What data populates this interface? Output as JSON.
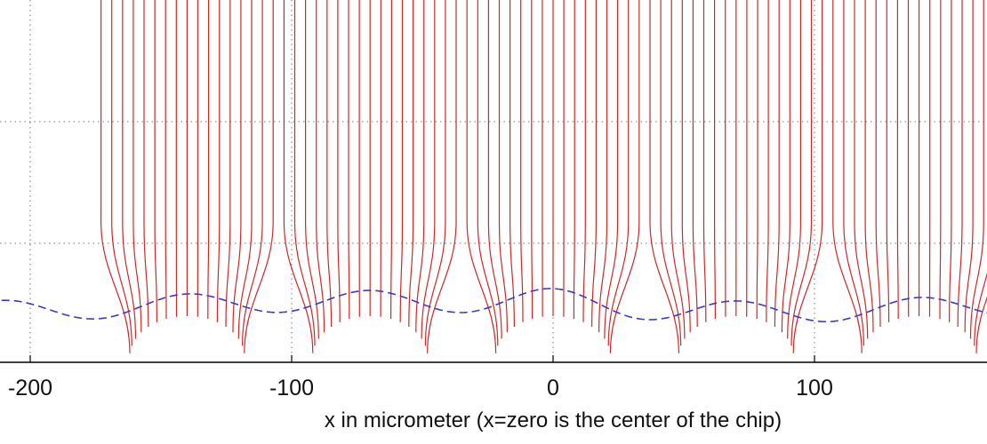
{
  "chart_data": {
    "type": "line",
    "title": "",
    "xlabel": "x in micrometer (x=zero is the center of the chip)",
    "ylabel": "",
    "xlim": [
      -211,
      166
    ],
    "x_ticks": [
      -200,
      -100,
      0,
      100
    ],
    "x_tick_labels": [
      "-200",
      "-100",
      "0",
      "100"
    ],
    "grid": true,
    "bump_centers": [
      -140,
      -70,
      0,
      70,
      140
    ],
    "lines_per_bump": 17,
    "series": [
      {
        "role": "field lines",
        "style": "solid",
        "color": "#cc2a2a"
      },
      {
        "role": "boundary",
        "style": "dashed",
        "color": "#3a3ac8"
      }
    ]
  }
}
